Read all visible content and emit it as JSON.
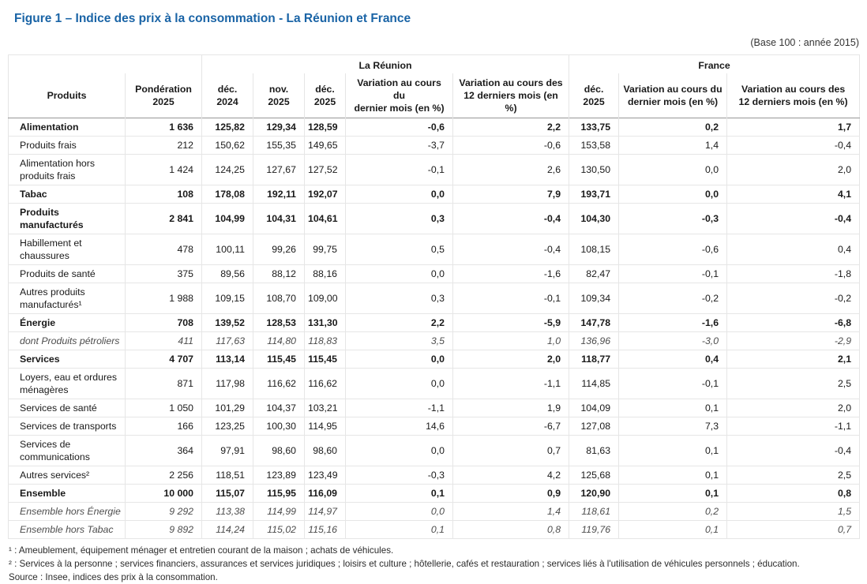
{
  "title": "Figure 1 – Indice des prix à la consommation - La Réunion et France",
  "base_note": "(Base 100 : année 2015)",
  "title_color": "#1A64A6",
  "table": {
    "groups": [
      {
        "label": "",
        "span": 2
      },
      {
        "label": "La Réunion",
        "span": 5
      },
      {
        "label": "France",
        "span": 3
      }
    ],
    "columns": [
      "Produits",
      "Pondération\n2025",
      "déc.\n2024",
      "nov.\n2025",
      "déc.\n2025",
      "Variation au cours du\ndernier mois (en %)",
      "Variation au cours des\n12 derniers mois (en %)",
      "déc.\n2025",
      "Variation au cours du\ndernier mois (en %)",
      "Variation au cours des\n12 derniers mois (en %)"
    ],
    "rows": [
      {
        "label": "Alimentation",
        "style": "bold",
        "values": [
          "1 636",
          "125,82",
          "129,34",
          "128,59",
          "-0,6",
          "2,2",
          "133,75",
          "0,2",
          "1,7"
        ]
      },
      {
        "label": "Produits frais",
        "style": "normal",
        "values": [
          "212",
          "150,62",
          "155,35",
          "149,65",
          "-3,7",
          "-0,6",
          "153,58",
          "1,4",
          "-0,4"
        ]
      },
      {
        "label": "Alimentation hors produits frais",
        "style": "normal",
        "values": [
          "1 424",
          "124,25",
          "127,67",
          "127,52",
          "-0,1",
          "2,6",
          "130,50",
          "0,0",
          "2,0"
        ]
      },
      {
        "label": "Tabac",
        "style": "bold",
        "values": [
          "108",
          "178,08",
          "192,11",
          "192,07",
          "0,0",
          "7,9",
          "193,71",
          "0,0",
          "4,1"
        ]
      },
      {
        "label": "Produits manufacturés",
        "style": "bold",
        "values": [
          "2 841",
          "104,99",
          "104,31",
          "104,61",
          "0,3",
          "-0,4",
          "104,30",
          "-0,3",
          "-0,4"
        ]
      },
      {
        "label": "Habillement et chaussures",
        "style": "normal",
        "values": [
          "478",
          "100,11",
          "99,26",
          "99,75",
          "0,5",
          "-0,4",
          "108,15",
          "-0,6",
          "0,4"
        ]
      },
      {
        "label": "Produits de santé",
        "style": "normal",
        "values": [
          "375",
          "89,56",
          "88,12",
          "88,16",
          "0,0",
          "-1,6",
          "82,47",
          "-0,1",
          "-1,8"
        ]
      },
      {
        "label": "Autres produits manufacturés¹",
        "style": "normal",
        "values": [
          "1 988",
          "109,15",
          "108,70",
          "109,00",
          "0,3",
          "-0,1",
          "109,34",
          "-0,2",
          "-0,2"
        ]
      },
      {
        "label": "Énergie",
        "style": "bold",
        "values": [
          "708",
          "139,52",
          "128,53",
          "131,30",
          "2,2",
          "-5,9",
          "147,78",
          "-1,6",
          "-6,8"
        ]
      },
      {
        "label": "dont Produits pétroliers",
        "style": "italic",
        "values": [
          "411",
          "117,63",
          "114,80",
          "118,83",
          "3,5",
          "1,0",
          "136,96",
          "-3,0",
          "-2,9"
        ]
      },
      {
        "label": "Services",
        "style": "bold",
        "values": [
          "4 707",
          "113,14",
          "115,45",
          "115,45",
          "0,0",
          "2,0",
          "118,77",
          "0,4",
          "2,1"
        ]
      },
      {
        "label": "Loyers, eau et ordures ménagères",
        "style": "normal",
        "values": [
          "871",
          "117,98",
          "116,62",
          "116,62",
          "0,0",
          "-1,1",
          "114,85",
          "-0,1",
          "2,5"
        ]
      },
      {
        "label": "Services de santé",
        "style": "normal",
        "values": [
          "1 050",
          "101,29",
          "104,37",
          "103,21",
          "-1,1",
          "1,9",
          "104,09",
          "0,1",
          "2,0"
        ]
      },
      {
        "label": "Services de transports",
        "style": "normal",
        "values": [
          "166",
          "123,25",
          "100,30",
          "114,95",
          "14,6",
          "-6,7",
          "127,08",
          "7,3",
          "-1,1"
        ]
      },
      {
        "label": "Services de communications",
        "style": "normal",
        "values": [
          "364",
          "97,91",
          "98,60",
          "98,60",
          "0,0",
          "0,7",
          "81,63",
          "0,1",
          "-0,4"
        ]
      },
      {
        "label": "Autres services²",
        "style": "normal",
        "values": [
          "2 256",
          "118,51",
          "123,89",
          "123,49",
          "-0,3",
          "4,2",
          "125,68",
          "0,1",
          "2,5"
        ]
      },
      {
        "label": "Ensemble",
        "style": "bold",
        "values": [
          "10 000",
          "115,07",
          "115,95",
          "116,09",
          "0,1",
          "0,9",
          "120,90",
          "0,1",
          "0,8"
        ]
      },
      {
        "label": "Ensemble hors Énergie",
        "style": "italic",
        "values": [
          "9 292",
          "113,38",
          "114,99",
          "114,97",
          "0,0",
          "1,4",
          "118,61",
          "0,2",
          "1,5"
        ]
      },
      {
        "label": "Ensemble hors Tabac",
        "style": "italic",
        "values": [
          "9 892",
          "114,24",
          "115,02",
          "115,16",
          "0,1",
          "0,8",
          "119,76",
          "0,1",
          "0,7"
        ]
      }
    ]
  },
  "footnotes": [
    "¹ : Ameublement, équipement ménager et entretien courant de la maison ; achats de véhicules.",
    "² : Services à la personne ; services financiers, assurances et services juridiques ; loisirs et culture ; hôtellerie, cafés et restauration ; services liés à l'utilisation de véhicules personnels ; éducation.",
    "Source : Insee, indices des prix à la consommation."
  ]
}
